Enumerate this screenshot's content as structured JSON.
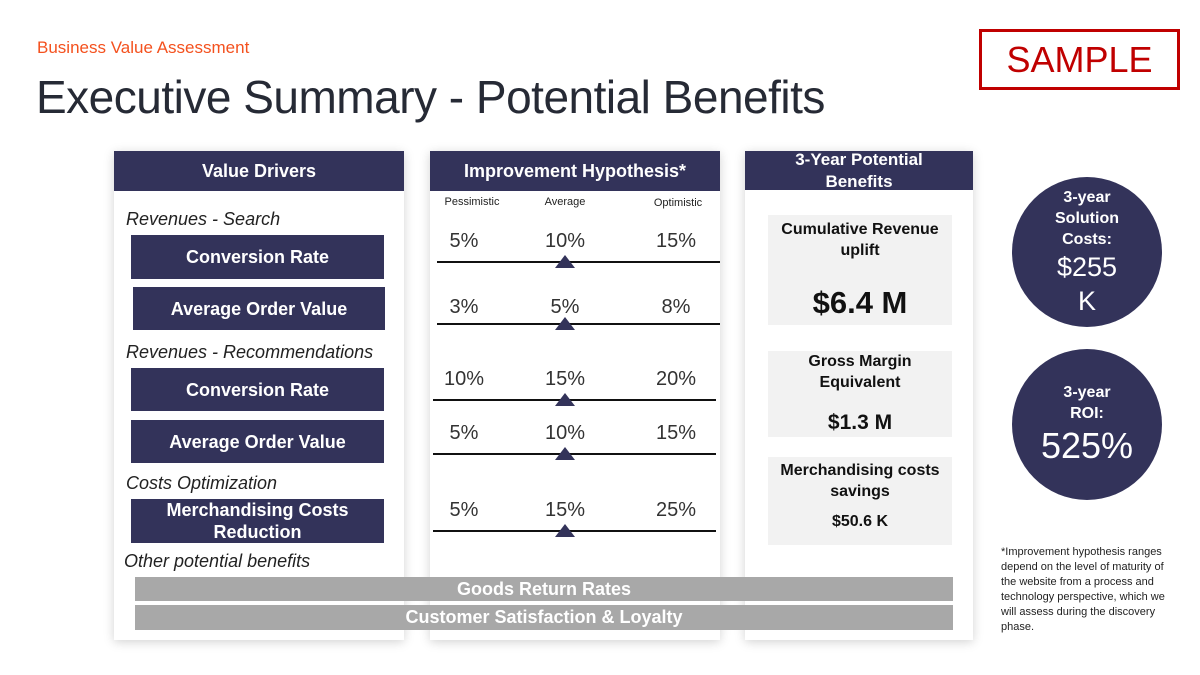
{
  "header": {
    "subtitle": "Business Value Assessment",
    "title": "Executive Summary - Potential Benefits",
    "badge": "SAMPLE"
  },
  "colors": {
    "navy": "#33335a",
    "accent": "#f4511e",
    "sample_red": "#c00000",
    "gray_bar": "#a8a8a8"
  },
  "value_drivers": {
    "title": "Value Drivers",
    "categories": [
      "Revenues - Search",
      "Revenues - Recommendations",
      "Costs Optimization",
      "Other potential benefits"
    ],
    "drivers": [
      "Conversion Rate",
      "Average Order Value",
      "Conversion Rate",
      "Average Order Value",
      "Merchandising Costs Reduction"
    ]
  },
  "hypothesis": {
    "title": "Improvement Hypothesis*",
    "columns": [
      "Pessimistic",
      "Average",
      "Optimistic"
    ],
    "rows": [
      {
        "pessimistic": "5%",
        "average": "10%",
        "optimistic": "15%"
      },
      {
        "pessimistic": "3%",
        "average": "5%",
        "optimistic": "8%"
      },
      {
        "pessimistic": "10%",
        "average": "15%",
        "optimistic": "20%"
      },
      {
        "pessimistic": "5%",
        "average": "10%",
        "optimistic": "15%"
      },
      {
        "pessimistic": "5%",
        "average": "15%",
        "optimistic": "25%"
      }
    ]
  },
  "benefits": {
    "title": "3-Year Potential Benefits",
    "items": [
      {
        "label": "Cumulative Revenue uplift",
        "value": "$6.4 M"
      },
      {
        "label": "Gross Margin Equivalent",
        "value": "$1.3 M"
      },
      {
        "label": "Merchandising costs savings",
        "value": "$50.6 K"
      }
    ]
  },
  "other_benefits": [
    "Goods Return Rates",
    "Customer Satisfaction & Loyalty"
  ],
  "kpis": [
    {
      "label": "3-year Solution Costs:",
      "value": "$255 K"
    },
    {
      "label": "3-year ROI:",
      "value": "525%"
    }
  ],
  "footnote": "*Improvement hypothesis ranges depend on the level of maturity of the website from a process and technology perspective, which we will assess during the discovery phase."
}
